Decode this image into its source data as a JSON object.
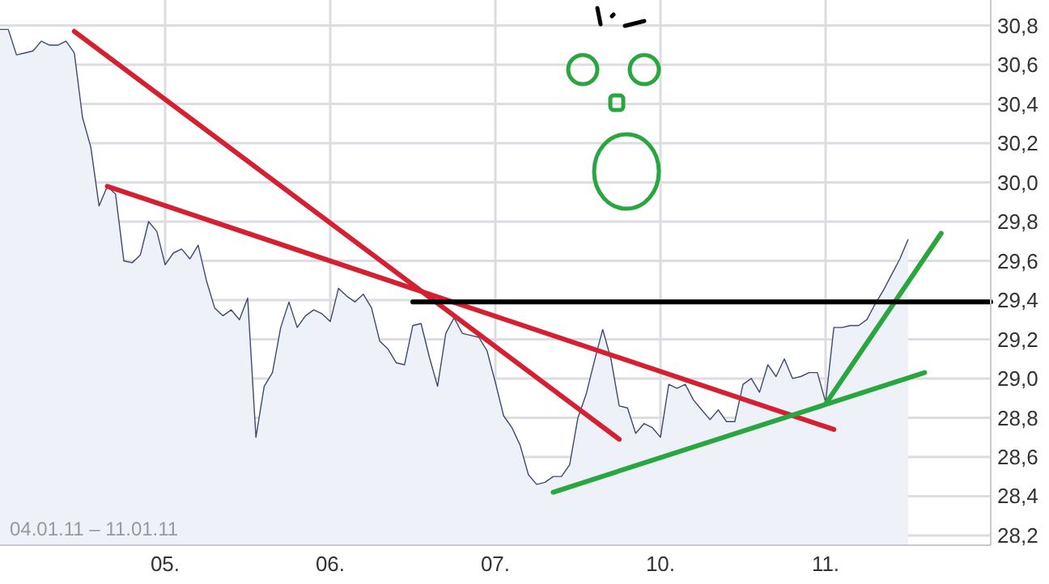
{
  "chart_data": {
    "type": "area",
    "annotations": [
      "04.01.11 – 11.01.11"
    ],
    "categories": [
      null,
      null,
      null,
      null,
      null,
      null,
      null,
      null,
      null,
      null,
      null,
      null,
      null,
      null,
      null,
      null,
      null,
      null,
      null,
      null,
      "05.",
      null,
      null,
      null,
      null,
      null,
      null,
      null,
      null,
      null,
      null,
      null,
      null,
      null,
      null,
      null,
      null,
      null,
      null,
      null,
      "06.",
      null,
      null,
      null,
      null,
      null,
      null,
      null,
      null,
      null,
      null,
      null,
      null,
      null,
      null,
      null,
      null,
      null,
      null,
      null,
      "07.",
      null,
      null,
      null,
      null,
      null,
      null,
      null,
      null,
      null,
      null,
      null,
      null,
      null,
      null,
      null,
      null,
      null,
      null,
      null,
      "10.",
      null,
      null,
      null,
      null,
      null,
      null,
      null,
      null,
      null,
      null,
      null,
      null,
      null,
      null,
      null,
      null,
      null,
      null,
      null,
      "11.",
      null,
      null,
      null,
      null,
      null,
      null,
      null,
      null,
      null,
      null,
      null,
      null,
      null,
      null,
      null,
      null,
      null,
      null,
      null,
      null
    ],
    "ylim": [
      28.15,
      30.93
    ],
    "yticks": [
      {
        "value": 28.2,
        "label": "28,2"
      },
      {
        "value": 28.4,
        "label": "28,4"
      },
      {
        "value": 28.6,
        "label": "28,6"
      },
      {
        "value": 28.8,
        "label": "28,8"
      },
      {
        "value": 29,
        "label": "29,0"
      },
      {
        "value": 29.2,
        "label": "29,2"
      },
      {
        "value": 29.4,
        "label": "29,4"
      },
      {
        "value": 29.6,
        "label": "29,6"
      },
      {
        "value": 29.8,
        "label": "29,8"
      },
      {
        "value": 30,
        "label": "30,0"
      },
      {
        "value": 30.2,
        "label": "30,2"
      },
      {
        "value": 30.4,
        "label": "30,4"
      },
      {
        "value": 30.6,
        "label": "30,6"
      },
      {
        "value": 30.8,
        "label": "30,8"
      }
    ],
    "grid": true,
    "series": [
      {
        "type": "area",
        "color": "#3b4a6e",
        "values": [
          30.78,
          30.78,
          30.65,
          30.66,
          30.67,
          30.72,
          30.7,
          30.7,
          30.72,
          30.66,
          30.33,
          30.18,
          29.88,
          29.98,
          29.94,
          29.6,
          29.59,
          29.63,
          29.8,
          29.75,
          29.58,
          29.64,
          29.66,
          29.61,
          29.68,
          29.5,
          29.36,
          29.32,
          29.35,
          29.3,
          29.41,
          28.7,
          28.96,
          29.03,
          29.26,
          29.39,
          29.26,
          29.32,
          29.35,
          29.33,
          29.29,
          29.46,
          29.42,
          29.39,
          29.43,
          29.36,
          29.19,
          29.15,
          29.08,
          29.07,
          29.27,
          29.28,
          29.11,
          28.96,
          29.23,
          29.31,
          29.23,
          29.22,
          29.21,
          29.14,
          28.98,
          28.81,
          28.75,
          28.66,
          28.51,
          28.46,
          28.47,
          28.5,
          28.5,
          28.56,
          28.8,
          28.92,
          29.09,
          29.25,
          29.1,
          28.86,
          28.85,
          28.72,
          28.77,
          28.75,
          28.7,
          28.97,
          28.95,
          28.97,
          28.89,
          28.84,
          28.79,
          28.84,
          28.78,
          28.78,
          28.97,
          29.0,
          28.93,
          29.07,
          29.01,
          29.1,
          29.0,
          29.01,
          29.03,
          29.03,
          28.88,
          29.26,
          29.26,
          29.27,
          29.27,
          29.3,
          29.38,
          29.45,
          29.53,
          29.61,
          29.71,
          null,
          null,
          null,
          null,
          null,
          null,
          null,
          null,
          null,
          null
        ]
      },
      {
        "type": "line",
        "color": "#d42030",
        "values": [
          null,
          null,
          null,
          null,
          null,
          null,
          null,
          null,
          null,
          30.77,
          null,
          null,
          null,
          null,
          null,
          null,
          null,
          null,
          null,
          null,
          null,
          null,
          null,
          null,
          null,
          null,
          null,
          null,
          null,
          null,
          null,
          null,
          null,
          null,
          null,
          null,
          null,
          null,
          null,
          null,
          null,
          null,
          null,
          null,
          null,
          null,
          null,
          null,
          null,
          null,
          null,
          null,
          null,
          null,
          null,
          null,
          null,
          null,
          null,
          null,
          null,
          null,
          null,
          null,
          null,
          null,
          null,
          null,
          null,
          null,
          null,
          null,
          null,
          null,
          null,
          28.69,
          null,
          null,
          null,
          null,
          null,
          null,
          null,
          null,
          null,
          null,
          null,
          null,
          null,
          null,
          null,
          null,
          null,
          null,
          null,
          null,
          null,
          null,
          null,
          null,
          null,
          null,
          null,
          null,
          null,
          null,
          null,
          null,
          null,
          null,
          null,
          null,
          null,
          null,
          null,
          null,
          null,
          null,
          null,
          null,
          null
        ]
      },
      {
        "type": "line",
        "color": "#d42030",
        "values": [
          null,
          null,
          null,
          null,
          null,
          null,
          null,
          null,
          null,
          null,
          null,
          null,
          null,
          29.98,
          null,
          null,
          null,
          null,
          null,
          null,
          null,
          null,
          null,
          null,
          null,
          null,
          null,
          null,
          null,
          null,
          null,
          null,
          null,
          null,
          null,
          null,
          null,
          null,
          null,
          null,
          null,
          null,
          null,
          null,
          null,
          null,
          null,
          null,
          null,
          null,
          null,
          null,
          null,
          null,
          null,
          null,
          null,
          null,
          null,
          null,
          null,
          null,
          null,
          null,
          null,
          null,
          null,
          null,
          null,
          null,
          null,
          null,
          null,
          null,
          null,
          null,
          null,
          null,
          null,
          null,
          null,
          null,
          null,
          null,
          null,
          null,
          null,
          null,
          null,
          null,
          null,
          null,
          null,
          null,
          null,
          null,
          null,
          null,
          null,
          null,
          null,
          28.74,
          null,
          null,
          null,
          null,
          null,
          null,
          null,
          null,
          null,
          null,
          null,
          null,
          null,
          null,
          null,
          null,
          null,
          null,
          null
        ]
      },
      {
        "type": "line",
        "color": "#2aa640",
        "values": [
          null,
          null,
          null,
          null,
          null,
          null,
          null,
          null,
          null,
          null,
          null,
          null,
          null,
          null,
          null,
          null,
          null,
          null,
          null,
          null,
          null,
          null,
          null,
          null,
          null,
          null,
          null,
          null,
          null,
          null,
          null,
          null,
          null,
          null,
          null,
          null,
          null,
          null,
          null,
          null,
          null,
          null,
          null,
          null,
          null,
          null,
          null,
          null,
          null,
          null,
          null,
          null,
          null,
          null,
          null,
          null,
          null,
          null,
          null,
          null,
          null,
          null,
          null,
          null,
          null,
          null,
          null,
          28.42,
          null,
          null,
          null,
          null,
          null,
          null,
          null,
          null,
          null,
          null,
          null,
          null,
          null,
          null,
          null,
          null,
          null,
          null,
          null,
          null,
          null,
          null,
          null,
          null,
          null,
          null,
          null,
          null,
          null,
          null,
          null,
          null,
          null,
          null,
          null,
          null,
          null,
          null,
          null,
          null,
          null,
          null,
          null,
          null,
          29.03,
          null,
          null,
          null,
          null,
          null,
          null,
          null,
          null
        ]
      },
      {
        "type": "line",
        "color": "#2aa640",
        "values": [
          null,
          null,
          null,
          null,
          null,
          null,
          null,
          null,
          null,
          null,
          null,
          null,
          null,
          null,
          null,
          null,
          null,
          null,
          null,
          null,
          null,
          null,
          null,
          null,
          null,
          null,
          null,
          null,
          null,
          null,
          null,
          null,
          null,
          null,
          null,
          null,
          null,
          null,
          null,
          null,
          null,
          null,
          null,
          null,
          null,
          null,
          null,
          null,
          null,
          null,
          null,
          null,
          null,
          null,
          null,
          null,
          null,
          null,
          null,
          null,
          null,
          null,
          null,
          null,
          null,
          null,
          null,
          null,
          null,
          null,
          null,
          null,
          null,
          null,
          null,
          null,
          null,
          null,
          null,
          null,
          null,
          null,
          null,
          null,
          null,
          null,
          null,
          null,
          null,
          null,
          null,
          null,
          null,
          null,
          null,
          null,
          null,
          null,
          null,
          null,
          28.87,
          null,
          null,
          null,
          null,
          null,
          null,
          null,
          null,
          null,
          null,
          null,
          null,
          null,
          29.74,
          null,
          null,
          null,
          null,
          null,
          null
        ]
      },
      {
        "type": "line",
        "color": "#000000",
        "values": [
          null,
          null,
          null,
          null,
          null,
          null,
          null,
          null,
          null,
          null,
          null,
          null,
          null,
          null,
          null,
          null,
          null,
          null,
          null,
          null,
          null,
          null,
          null,
          null,
          null,
          null,
          null,
          null,
          null,
          null,
          null,
          null,
          null,
          null,
          null,
          null,
          null,
          null,
          null,
          null,
          null,
          null,
          null,
          null,
          null,
          null,
          null,
          null,
          null,
          null,
          29.39,
          null,
          null,
          null,
          null,
          null,
          null,
          null,
          null,
          null,
          null,
          null,
          null,
          null,
          null,
          null,
          null,
          null,
          null,
          null,
          null,
          null,
          null,
          null,
          null,
          null,
          null,
          null,
          null,
          null,
          null,
          null,
          null,
          null,
          null,
          null,
          null,
          null,
          null,
          null,
          null,
          null,
          null,
          null,
          null,
          null,
          null,
          null,
          null,
          null,
          null,
          null,
          null,
          null,
          null,
          null,
          null,
          null,
          null,
          null,
          null,
          null,
          null,
          null,
          null,
          null,
          null,
          null,
          null,
          null,
          29.39
        ]
      }
    ]
  }
}
